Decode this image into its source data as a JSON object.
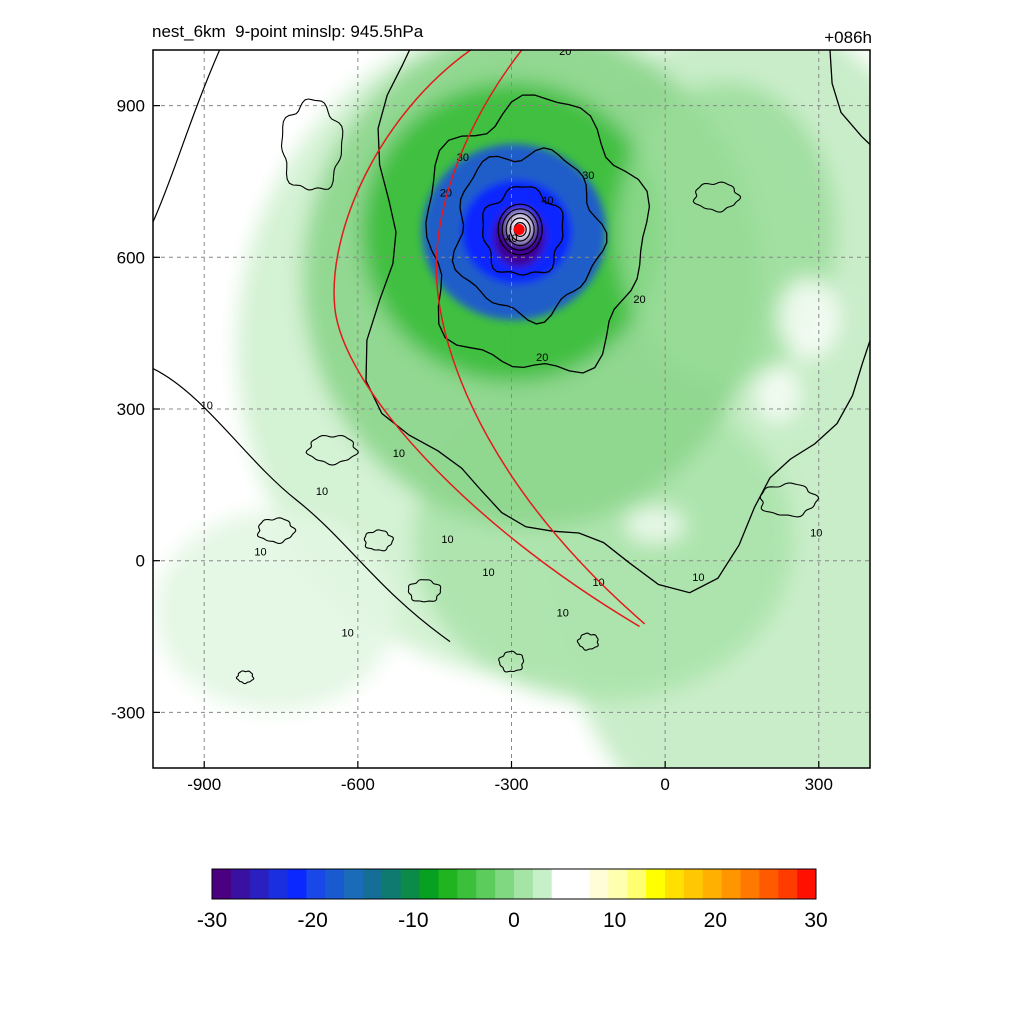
{
  "chart_data": {
    "type": "heatmap",
    "title": "nest_6km  9-point minslp: 945.5hPa",
    "time_label": "+086h",
    "xlim": [
      -1000,
      400
    ],
    "ylim": [
      -410,
      1010
    ],
    "xticks": [
      -900,
      -600,
      -300,
      0,
      300
    ],
    "yticks": [
      -300,
      0,
      300,
      600,
      900
    ],
    "grid": true,
    "contour_levels": [
      10,
      20,
      30,
      40,
      50
    ],
    "storm_center": {
      "x": -285,
      "y": 655
    },
    "colorbar": {
      "ticks": [
        -30,
        -20,
        -10,
        0,
        10,
        20,
        30
      ],
      "range": [
        -30,
        30
      ],
      "colors": [
        "#4b0082",
        "#3a10a0",
        "#2a20c0",
        "#1a30e0",
        "#0a28ff",
        "#1848e8",
        "#1a5ad0",
        "#1a6cb8",
        "#156e96",
        "#0f7a70",
        "#0c8a48",
        "#08a020",
        "#20b420",
        "#3cc03c",
        "#5ccc5c",
        "#80d880",
        "#a4e4a4",
        "#c8f0c8",
        "#ffffff",
        "#ffffff",
        "#fffcd8",
        "#ffffb0",
        "#ffff70",
        "#ffff00",
        "#ffe000",
        "#ffc800",
        "#ffb000",
        "#ff9600",
        "#ff7800",
        "#ff5a00",
        "#ff3c00",
        "#ff1000"
      ]
    }
  }
}
